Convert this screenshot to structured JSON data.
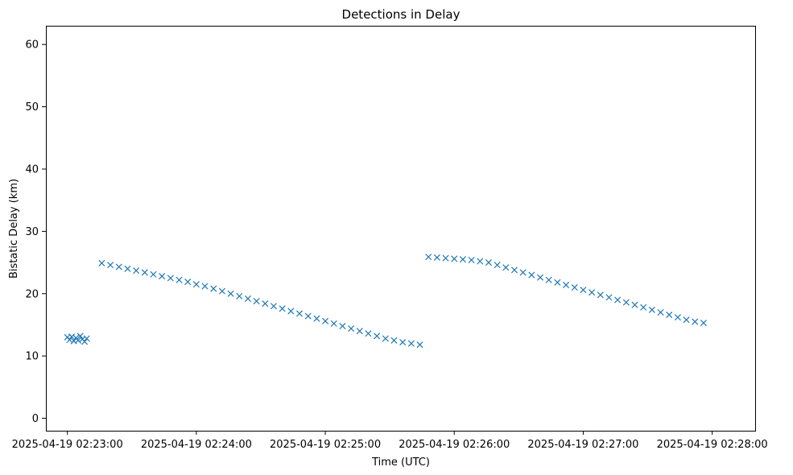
{
  "chart_data": {
    "type": "scatter",
    "title": "Detections in Delay",
    "xlabel": "Time (UTC)",
    "ylabel": "Bistatic Delay (km)",
    "marker": "x",
    "color": "#1f77b4",
    "grid": false,
    "xlim": [
      "2025-04-19 02:22:50",
      "2025-04-19 02:28:20"
    ],
    "ylim": [
      -2,
      63
    ],
    "x_ticks": [
      "2025-04-19 02:23:00",
      "2025-04-19 02:24:00",
      "2025-04-19 02:25:00",
      "2025-04-19 02:26:00",
      "2025-04-19 02:27:00",
      "2025-04-19 02:28:00"
    ],
    "y_ticks": [
      0,
      10,
      20,
      30,
      40,
      50,
      60
    ],
    "series": [
      {
        "points": [
          [
            "02:23:00",
            13.0
          ],
          [
            "02:23:01",
            12.6
          ],
          [
            "02:23:02",
            13.1
          ],
          [
            "02:23:03",
            12.4
          ],
          [
            "02:23:04",
            12.9
          ],
          [
            "02:23:05",
            12.5
          ],
          [
            "02:23:06",
            13.2
          ],
          [
            "02:23:07",
            12.7
          ],
          [
            "02:23:08",
            12.3
          ],
          [
            "02:23:09",
            12.8
          ],
          [
            "02:23:16",
            24.9
          ],
          [
            "02:23:20",
            24.6
          ],
          [
            "02:23:24",
            24.3
          ],
          [
            "02:23:28",
            24.0
          ],
          [
            "02:23:32",
            23.7
          ],
          [
            "02:23:36",
            23.4
          ],
          [
            "02:23:40",
            23.1
          ],
          [
            "02:23:44",
            22.8
          ],
          [
            "02:23:48",
            22.5
          ],
          [
            "02:23:52",
            22.2
          ],
          [
            "02:23:56",
            21.9
          ],
          [
            "02:24:00",
            21.5
          ],
          [
            "02:24:04",
            21.2
          ],
          [
            "02:24:08",
            20.8
          ],
          [
            "02:24:12",
            20.4
          ],
          [
            "02:24:16",
            20.0
          ],
          [
            "02:24:20",
            19.6
          ],
          [
            "02:24:24",
            19.2
          ],
          [
            "02:24:28",
            18.8
          ],
          [
            "02:24:32",
            18.4
          ],
          [
            "02:24:36",
            18.0
          ],
          [
            "02:24:40",
            17.6
          ],
          [
            "02:24:44",
            17.2
          ],
          [
            "02:24:48",
            16.8
          ],
          [
            "02:24:52",
            16.4
          ],
          [
            "02:24:56",
            16.0
          ],
          [
            "02:25:00",
            15.6
          ],
          [
            "02:25:04",
            15.2
          ],
          [
            "02:25:08",
            14.8
          ],
          [
            "02:25:12",
            14.4
          ],
          [
            "02:25:16",
            14.0
          ],
          [
            "02:25:20",
            13.6
          ],
          [
            "02:25:24",
            13.2
          ],
          [
            "02:25:28",
            12.8
          ],
          [
            "02:25:32",
            12.5
          ],
          [
            "02:25:36",
            12.2
          ],
          [
            "02:25:40",
            12.0
          ],
          [
            "02:25:44",
            11.8
          ],
          [
            "02:25:48",
            25.9
          ],
          [
            "02:25:52",
            25.8
          ],
          [
            "02:25:56",
            25.7
          ],
          [
            "02:26:00",
            25.6
          ],
          [
            "02:26:04",
            25.5
          ],
          [
            "02:26:08",
            25.4
          ],
          [
            "02:26:12",
            25.2
          ],
          [
            "02:26:16",
            25.0
          ],
          [
            "02:26:20",
            24.6
          ],
          [
            "02:26:24",
            24.2
          ],
          [
            "02:26:28",
            23.8
          ],
          [
            "02:26:32",
            23.4
          ],
          [
            "02:26:36",
            23.0
          ],
          [
            "02:26:40",
            22.6
          ],
          [
            "02:26:44",
            22.2
          ],
          [
            "02:26:48",
            21.8
          ],
          [
            "02:26:52",
            21.4
          ],
          [
            "02:26:56",
            21.0
          ],
          [
            "02:27:00",
            20.6
          ],
          [
            "02:27:04",
            20.2
          ],
          [
            "02:27:08",
            19.8
          ],
          [
            "02:27:12",
            19.4
          ],
          [
            "02:27:16",
            19.0
          ],
          [
            "02:27:20",
            18.6
          ],
          [
            "02:27:24",
            18.2
          ],
          [
            "02:27:28",
            17.8
          ],
          [
            "02:27:32",
            17.4
          ],
          [
            "02:27:36",
            17.0
          ],
          [
            "02:27:40",
            16.6
          ],
          [
            "02:27:44",
            16.2
          ],
          [
            "02:27:48",
            15.8
          ],
          [
            "02:27:52",
            15.5
          ],
          [
            "02:27:56",
            15.3
          ]
        ]
      }
    ]
  }
}
